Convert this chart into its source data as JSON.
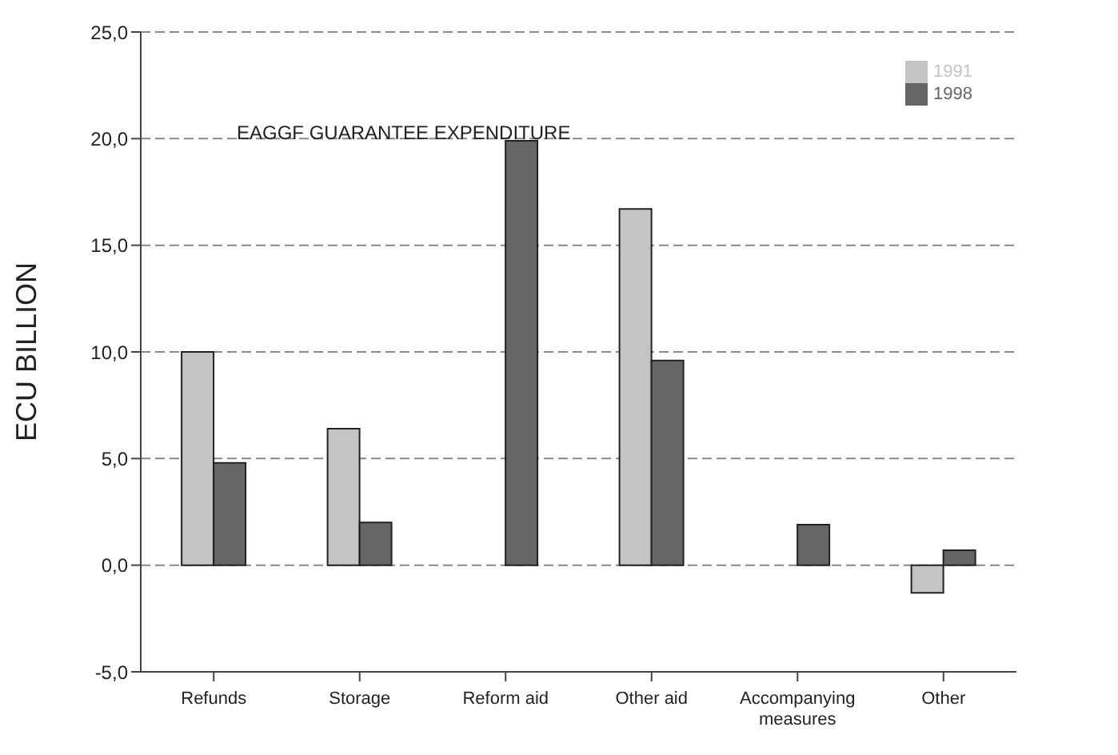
{
  "chart_data": {
    "type": "bar",
    "title": "EAGGF GUARANTEE EXPENDITURE",
    "ylabel": "ECU BILLION",
    "categories": [
      "Refunds",
      "Storage",
      "Reform aid",
      "Other aid",
      "Accompanying measures",
      "Other"
    ],
    "series": [
      {
        "name": "1991",
        "color": "#c4c4c4",
        "values": [
          10.0,
          6.4,
          null,
          16.7,
          null,
          -1.3
        ]
      },
      {
        "name": "1998",
        "color": "#666666",
        "values": [
          4.8,
          2.0,
          19.9,
          9.6,
          1.9,
          0.7
        ]
      }
    ],
    "ylim": [
      -5,
      25
    ],
    "yticks": [
      {
        "value": -5,
        "label": "-5,0"
      },
      {
        "value": 0,
        "label": "0,0"
      },
      {
        "value": 5,
        "label": "5,0"
      },
      {
        "value": 10,
        "label": "10,0"
      },
      {
        "value": 15,
        "label": "15,0"
      },
      {
        "value": 20,
        "label": "20,0"
      },
      {
        "value": 25,
        "label": "25,0"
      }
    ],
    "grid": "y",
    "legend": "top right"
  }
}
